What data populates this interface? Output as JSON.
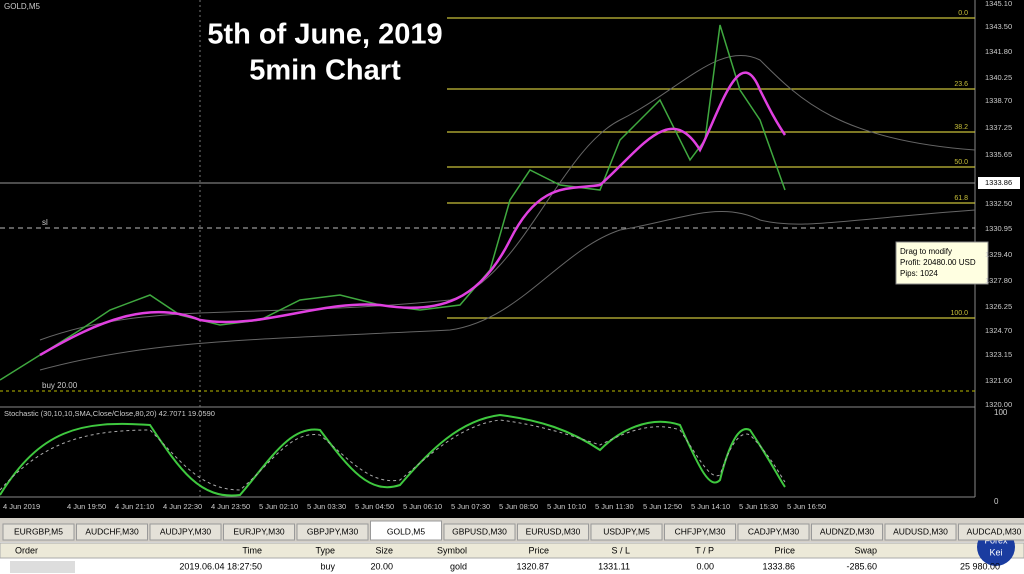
{
  "chart": {
    "symbol": "GOLD,M5",
    "title": "5th of June, 2019",
    "subtitle": "5min Chart",
    "price_labels": [
      "1345.10",
      "1343.50",
      "1341.80",
      "1340.25",
      "1338.70",
      "1337.25",
      "1335.65",
      "1333.86",
      "1332.50",
      "1330.95",
      "1329.40",
      "1327.80",
      "1326.25",
      "1324.70",
      "1323.15",
      "1321.60",
      "1320.00"
    ],
    "fib_labels": [
      "0.0",
      "23.6",
      "38.2",
      "50.0",
      "61.8",
      "100.0"
    ],
    "sl_label": "sl",
    "buy_label": "buy 20.00",
    "tooltip": [
      "Drag to modify",
      "Profit: 20480.00 USD",
      "Pips: 1024"
    ],
    "indicator": "Stochastic (30,10,10,SMA,Close/Close,80,20) 42.7071 19.0590",
    "indicator_scale": [
      "100",
      "0"
    ],
    "time_labels": [
      "4 Jun 2019",
      "4 Jun 19:50",
      "4 Jun 21:10",
      "4 Jun 22:30",
      "4 Jun 23:50",
      "5 Jun 02:10",
      "5 Jun 03:30",
      "5 Jun 04:50",
      "5 Jun 06:10",
      "5 Jun 07:30",
      "5 Jun 08:50",
      "5 Jun 10:10",
      "5 Jun 11:30",
      "5 Jun 12:50",
      "5 Jun 14:10",
      "5 Jun 15:30",
      "5 Jun 16:50"
    ]
  },
  "tabs": [
    "EURGBP,M5",
    "AUDCHF,M30",
    "AUDJPY,M30",
    "EURJPY,M30",
    "GBPJPY,M30",
    "GOLD,M5",
    "GBPUSD,M30",
    "EURUSD,M30",
    "USDJPY,M5",
    "CHFJPY,M30",
    "CADJPY,M30",
    "AUDNZD,M30",
    "AUDUSD,M30",
    "AUDCAD,M30"
  ],
  "table": {
    "headers": [
      "Order",
      "Time",
      "Type",
      "Size",
      "Symbol",
      "Price",
      "S / L",
      "T / P",
      "Price",
      "Swap"
    ],
    "rows": [
      [
        "2019.06.04 18:27:50",
        "buy",
        "20.00",
        "gold",
        "1320.87",
        "1331.11",
        "0.00",
        "1333.86",
        "-285.60",
        "25 980.00"
      ]
    ]
  },
  "logo": [
    "Forex",
    "Kei"
  ]
}
